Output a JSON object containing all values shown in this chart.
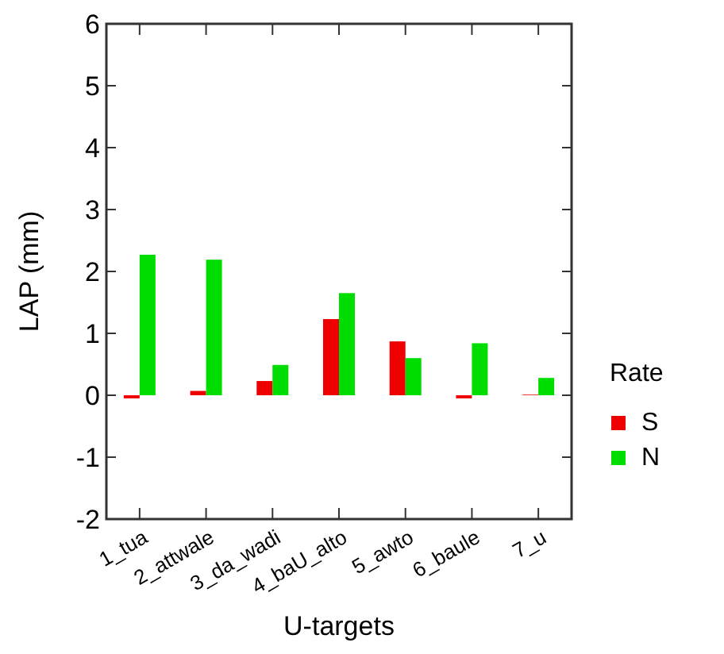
{
  "chart_data": {
    "type": "bar",
    "xlabel": "U-targets",
    "ylabel": "LAP (mm)",
    "legend_title": "Rate",
    "categories": [
      "1_tua",
      "2_attwale",
      "3_da_wadi",
      "4_baU_alto",
      "5_awto",
      "6_baule",
      "7_u"
    ],
    "series": [
      {
        "name": "S",
        "color": "#ee0000",
        "values": [
          -0.05,
          0.07,
          0.23,
          1.23,
          0.87,
          -0.05,
          0.01
        ]
      },
      {
        "name": "N",
        "color": "#00dd00",
        "values": [
          2.27,
          2.19,
          0.49,
          1.65,
          0.6,
          0.84,
          0.28
        ]
      }
    ],
    "ylim": [
      -2,
      6
    ],
    "yticks": [
      -2,
      -1,
      0,
      1,
      2,
      3,
      4,
      5,
      6
    ],
    "grid": false,
    "legend": "right"
  }
}
